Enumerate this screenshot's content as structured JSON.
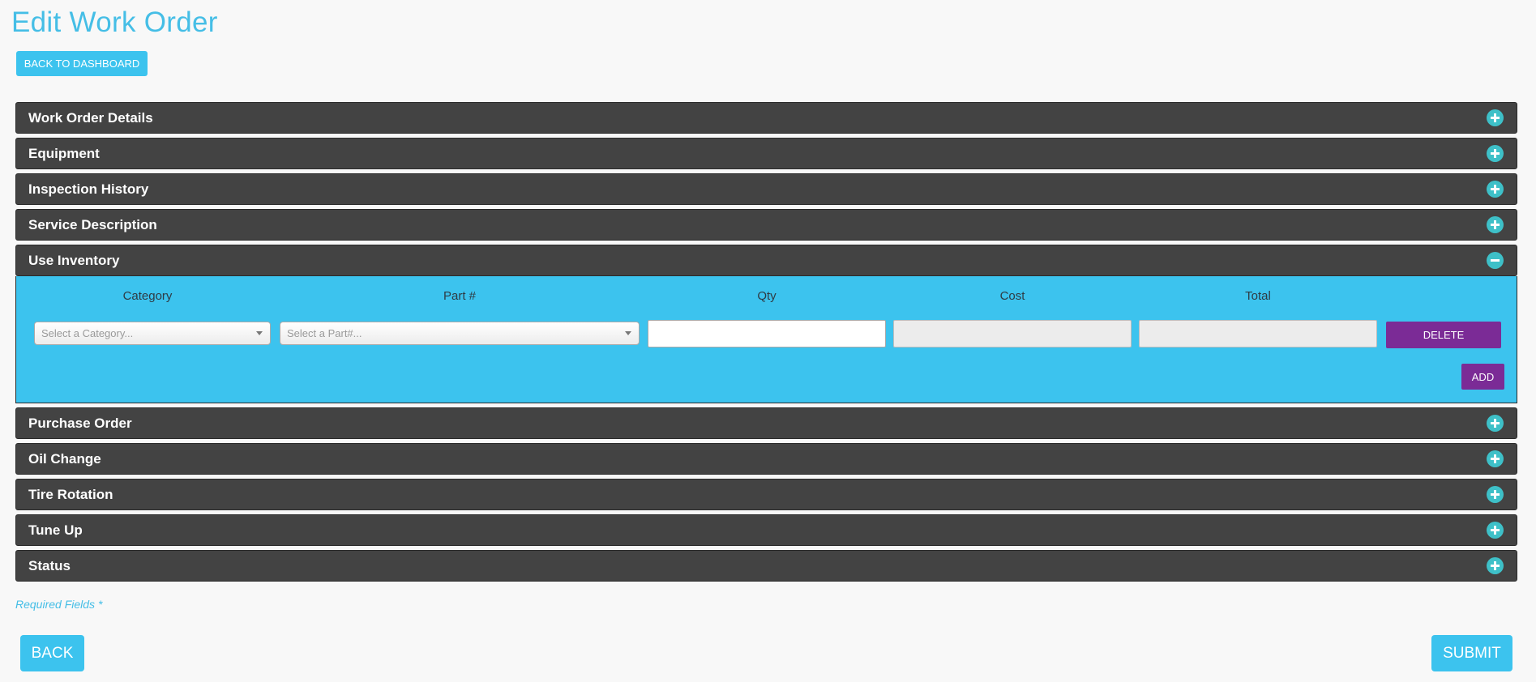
{
  "page": {
    "title": "Edit Work Order"
  },
  "toolbar": {
    "back_to_dashboard_label": "BACK TO DASHBOARD"
  },
  "colors": {
    "accent": "#3cc3ee",
    "panel_header": "#434343",
    "toggle": "#3ec0c8",
    "action_purple": "#7b2b96"
  },
  "sections": [
    {
      "label": "Work Order Details",
      "expanded": false,
      "icon": "plus-circle-icon"
    },
    {
      "label": "Equipment",
      "expanded": false,
      "icon": "plus-circle-icon"
    },
    {
      "label": "Inspection History",
      "expanded": false,
      "icon": "plus-circle-icon"
    },
    {
      "label": "Service Description",
      "expanded": false,
      "icon": "plus-circle-icon"
    },
    {
      "label": "Use Inventory",
      "expanded": true,
      "icon": "minus-circle-icon"
    },
    {
      "label": "Purchase Order",
      "expanded": false,
      "icon": "plus-circle-icon"
    },
    {
      "label": "Oil Change",
      "expanded": false,
      "icon": "plus-circle-icon"
    },
    {
      "label": "Tire Rotation",
      "expanded": false,
      "icon": "plus-circle-icon"
    },
    {
      "label": "Tune Up",
      "expanded": false,
      "icon": "plus-circle-icon"
    },
    {
      "label": "Status",
      "expanded": false,
      "icon": "plus-circle-icon"
    }
  ],
  "inventory": {
    "columns": [
      "Category",
      "Part #",
      "Qty",
      "Cost",
      "Total"
    ],
    "row": {
      "category_placeholder": "Select a Category...",
      "part_placeholder": "Select a Part#...",
      "qty": "",
      "cost": "",
      "total": "",
      "delete_label": "DELETE"
    },
    "add_label": "ADD"
  },
  "footer": {
    "required_note": "Required Fields *",
    "back_label": "BACK",
    "submit_label": "SUBMIT"
  }
}
